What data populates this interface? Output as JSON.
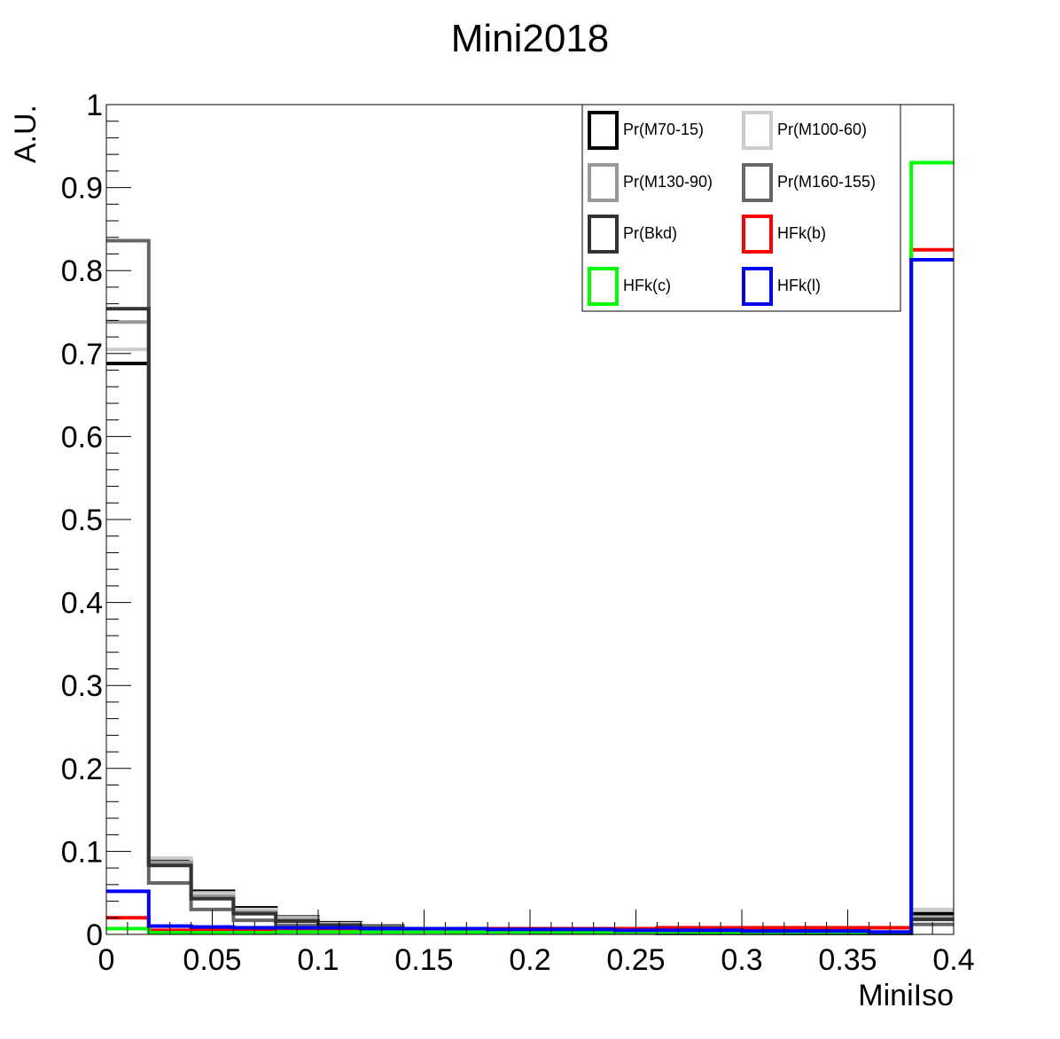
{
  "chart_data": {
    "type": "line",
    "style": "step-histogram",
    "title": "Mini2018",
    "xlabel": "MiniIso",
    "ylabel": "A.U.",
    "xlim": [
      0,
      0.4
    ],
    "ylim": [
      0,
      1
    ],
    "x_bin_edges": [
      0,
      0.02,
      0.04,
      0.06,
      0.08,
      0.1,
      0.12,
      0.14,
      0.16,
      0.18,
      0.2,
      0.22,
      0.24,
      0.26,
      0.28,
      0.3,
      0.32,
      0.34,
      0.36,
      0.38,
      0.4
    ],
    "x_ticks": [
      {
        "value": 0,
        "label": "0"
      },
      {
        "value": 0.05,
        "label": "0.05"
      },
      {
        "value": 0.1,
        "label": "0.1"
      },
      {
        "value": 0.15,
        "label": "0.15"
      },
      {
        "value": 0.2,
        "label": "0.2"
      },
      {
        "value": 0.25,
        "label": "0.25"
      },
      {
        "value": 0.3,
        "label": "0.3"
      },
      {
        "value": 0.35,
        "label": "0.35"
      },
      {
        "value": 0.4,
        "label": "0.4"
      }
    ],
    "y_ticks": [
      {
        "value": 0,
        "label": "0"
      },
      {
        "value": 0.1,
        "label": "0.1"
      },
      {
        "value": 0.2,
        "label": "0.2"
      },
      {
        "value": 0.3,
        "label": "0.3"
      },
      {
        "value": 0.4,
        "label": "0.4"
      },
      {
        "value": 0.5,
        "label": "0.5"
      },
      {
        "value": 0.6,
        "label": "0.6"
      },
      {
        "value": 0.7,
        "label": "0.7"
      },
      {
        "value": 0.8,
        "label": "0.8"
      },
      {
        "value": 0.9,
        "label": "0.9"
      },
      {
        "value": 1,
        "label": "1"
      }
    ],
    "grid": false,
    "legend_placement": "top-right",
    "series": [
      {
        "name": "Pr(M70-15)",
        "color": "#000000",
        "values": [
          0.688,
          0.09,
          0.052,
          0.032,
          0.021,
          0.014,
          0.01,
          0.007,
          0.005,
          0.004,
          0.003,
          0.003,
          0.002,
          0.002,
          0.002,
          0.002,
          0.001,
          0.001,
          0.001,
          0.025
        ]
      },
      {
        "name": "Pr(M100-60)",
        "color": "#cccccc",
        "values": [
          0.705,
          0.092,
          0.05,
          0.03,
          0.02,
          0.013,
          0.009,
          0.006,
          0.005,
          0.004,
          0.003,
          0.003,
          0.002,
          0.002,
          0.002,
          0.002,
          0.001,
          0.001,
          0.001,
          0.03
        ]
      },
      {
        "name": "Pr(M130-90)",
        "color": "#999999",
        "values": [
          0.738,
          0.087,
          0.046,
          0.027,
          0.018,
          0.012,
          0.008,
          0.006,
          0.005,
          0.004,
          0.003,
          0.003,
          0.002,
          0.002,
          0.002,
          0.002,
          0.001,
          0.001,
          0.001,
          0.02
        ]
      },
      {
        "name": "Pr(M160-155)",
        "color": "#666666",
        "values": [
          0.836,
          0.062,
          0.03,
          0.017,
          0.011,
          0.008,
          0.006,
          0.004,
          0.003,
          0.003,
          0.002,
          0.002,
          0.002,
          0.001,
          0.001,
          0.001,
          0.001,
          0.001,
          0.001,
          0.012
        ]
      },
      {
        "name": "Pr(Bkd)",
        "color": "#333333",
        "values": [
          0.754,
          0.083,
          0.043,
          0.025,
          0.016,
          0.011,
          0.008,
          0.006,
          0.005,
          0.004,
          0.003,
          0.003,
          0.002,
          0.002,
          0.002,
          0.002,
          0.001,
          0.001,
          0.001,
          0.018
        ]
      },
      {
        "name": "HFk(b)",
        "color": "#ff0000",
        "values": [
          0.02,
          0.005,
          0.006,
          0.006,
          0.006,
          0.007,
          0.007,
          0.007,
          0.007,
          0.007,
          0.007,
          0.007,
          0.007,
          0.008,
          0.008,
          0.008,
          0.008,
          0.008,
          0.008,
          0.825
        ]
      },
      {
        "name": "HFk(c)",
        "color": "#00ff00",
        "values": [
          0.007,
          0.002,
          0.002,
          0.002,
          0.003,
          0.003,
          0.003,
          0.003,
          0.003,
          0.003,
          0.003,
          0.003,
          0.003,
          0.003,
          0.002,
          0.002,
          0.002,
          0.002,
          0.002,
          0.93
        ]
      },
      {
        "name": "HFk(l)",
        "color": "#0000ff",
        "values": [
          0.052,
          0.01,
          0.009,
          0.008,
          0.008,
          0.008,
          0.007,
          0.007,
          0.007,
          0.006,
          0.006,
          0.006,
          0.005,
          0.005,
          0.005,
          0.004,
          0.004,
          0.004,
          0.003,
          0.813
        ]
      }
    ]
  }
}
